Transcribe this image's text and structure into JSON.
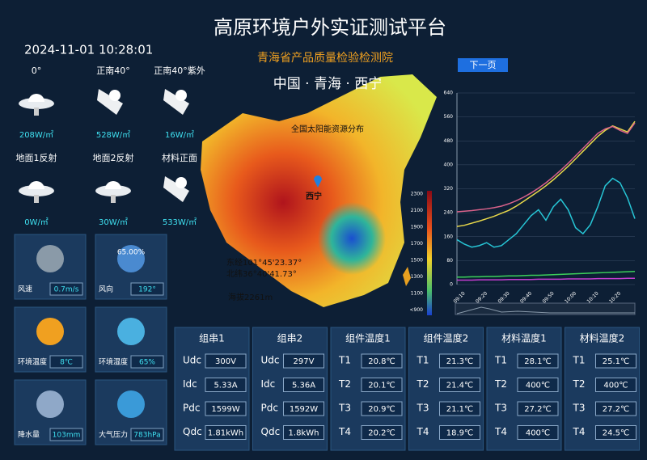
{
  "header": {
    "title": "高原环境户外实证测试平台",
    "datetime": "2024-11-01 10:28:01",
    "subtitle": "青海省产品质量检验检测院",
    "button": "下一页"
  },
  "sensors": [
    {
      "label": "0°",
      "value": "208W/㎡"
    },
    {
      "label": "正南40°",
      "value": "528W/㎡"
    },
    {
      "label": "正南40°紫外",
      "value": "16W/㎡"
    },
    {
      "label": "地面1反射",
      "value": "0W/㎡"
    },
    {
      "label": "地面2反射",
      "value": "30W/㎡"
    },
    {
      "label": "材料正面",
      "value": "533W/㎡"
    }
  ],
  "weather": [
    {
      "label": "风速",
      "value": "0.7m/s"
    },
    {
      "label": "风向",
      "value": "192°"
    },
    {
      "label": "环境温度",
      "value": "8℃"
    },
    {
      "label": "环境湿度",
      "value": "65%"
    },
    {
      "label": "降水量",
      "value": "103mm"
    },
    {
      "label": "大气压力",
      "value": "783hPa"
    }
  ],
  "humidity_gauge": "65.00%",
  "map": {
    "heading": "中国 · 青海 · 西宁",
    "caption": "全国太阳能资源分布",
    "city": "西宁",
    "longitude": "东经101°45'23.37°",
    "latitude": "北纬36°40'41.73°",
    "altitude": "海拔2261m",
    "scale": [
      "2300",
      "2100",
      "1900",
      "1700",
      "1500",
      "1300",
      "1100",
      "<900"
    ]
  },
  "panels": [
    {
      "title": "组串1",
      "rows": [
        [
          "Udc",
          "300V"
        ],
        [
          "Idc",
          "5.33A"
        ],
        [
          "Pdc",
          "1599W"
        ],
        [
          "Qdc",
          "1.81kWh"
        ]
      ]
    },
    {
      "title": "组串2",
      "rows": [
        [
          "Udc",
          "297V"
        ],
        [
          "Idc",
          "5.36A"
        ],
        [
          "Pdc",
          "1592W"
        ],
        [
          "Qdc",
          "1.8kWh"
        ]
      ]
    },
    {
      "title": "组件温度1",
      "rows": [
        [
          "T1",
          "20.8℃"
        ],
        [
          "T2",
          "20.1℃"
        ],
        [
          "T3",
          "20.9℃"
        ],
        [
          "T4",
          "20.2℃"
        ]
      ]
    },
    {
      "title": "组件温度2",
      "rows": [
        [
          "T1",
          "21.3℃"
        ],
        [
          "T2",
          "21.4℃"
        ],
        [
          "T3",
          "21.1℃"
        ],
        [
          "T4",
          "18.9℃"
        ]
      ]
    },
    {
      "title": "材料温度1",
      "rows": [
        [
          "T1",
          "28.1℃"
        ],
        [
          "T2",
          "400℃"
        ],
        [
          "T3",
          "27.2℃"
        ],
        [
          "T4",
          "400℃"
        ]
      ]
    },
    {
      "title": "材料温度2",
      "rows": [
        [
          "T1",
          "25.1℃"
        ],
        [
          "T2",
          "400℃"
        ],
        [
          "T3",
          "27.2℃"
        ],
        [
          "T4",
          "24.5℃"
        ]
      ]
    }
  ],
  "trend_chart": {
    "type": "line",
    "ylim": [
      0,
      640
    ],
    "yticks": [
      0,
      80,
      160,
      240,
      320,
      400,
      480,
      560,
      640
    ],
    "grid": true,
    "categories": [
      null,
      "09:10",
      null,
      null,
      "09:20",
      null,
      null,
      "09:30",
      null,
      null,
      "09:40",
      null,
      null,
      "09:50",
      null,
      null,
      "10:00",
      null,
      null,
      "10:10",
      null,
      null,
      "10:20",
      null,
      null
    ],
    "series": [
      {
        "color": "#e8d84a",
        "values": [
          194,
          198,
          205,
          212,
          220,
          228,
          238,
          248,
          262,
          278,
          295,
          312,
          330,
          350,
          372,
          395,
          420,
          445,
          470,
          495,
          515,
          530,
          520,
          510,
          545
        ]
      },
      {
        "color": "#d9628a",
        "values": [
          243,
          245,
          247,
          250,
          253,
          257,
          262,
          270,
          280,
          292,
          306,
          322,
          340,
          360,
          382,
          405,
          430,
          455,
          480,
          505,
          520,
          528,
          515,
          505,
          540
        ]
      },
      {
        "color": "#27c6d6",
        "values": [
          150,
          135,
          125,
          130,
          140,
          125,
          130,
          150,
          170,
          200,
          230,
          250,
          215,
          260,
          285,
          250,
          190,
          170,
          200,
          260,
          330,
          355,
          340,
          290,
          220
        ]
      },
      {
        "color": "#3ccf5a",
        "values": [
          25,
          25,
          26,
          26,
          27,
          27,
          28,
          29,
          29,
          30,
          31,
          31,
          32,
          33,
          34,
          35,
          36,
          37,
          38,
          39,
          40,
          41,
          42,
          43,
          44
        ]
      },
      {
        "color": "#c43dd0",
        "values": [
          15,
          15,
          15,
          16,
          16,
          16,
          16,
          17,
          17,
          17,
          17,
          18,
          18,
          18,
          18,
          19,
          19,
          19,
          19,
          20,
          20,
          20,
          20,
          21,
          21
        ]
      }
    ]
  }
}
